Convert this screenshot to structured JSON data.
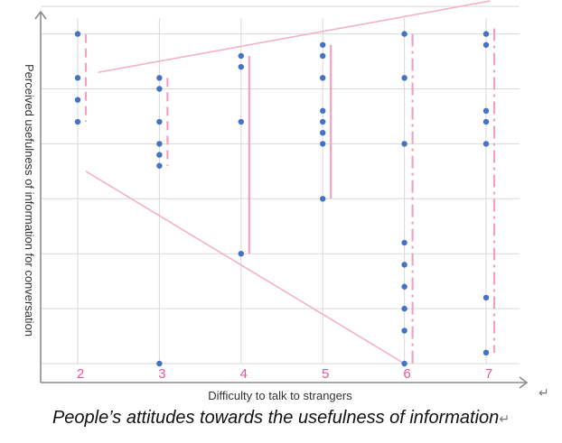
{
  "chart_data": {
    "type": "scatter",
    "xlabel": "Difficulty to talk to strangers",
    "ylabel": "Perceived usefulness of information for conversation",
    "categories": [
      2,
      3,
      4,
      5,
      6,
      7
    ],
    "xlim": [
      1.5,
      7.4
    ],
    "ylim": [
      0,
      7
    ],
    "grid": true,
    "points": [
      {
        "x": 2,
        "y": 6.0
      },
      {
        "x": 2,
        "y": 5.2
      },
      {
        "x": 2,
        "y": 4.8
      },
      {
        "x": 2,
        "y": 4.4
      },
      {
        "x": 3,
        "y": 5.2
      },
      {
        "x": 3,
        "y": 5.0
      },
      {
        "x": 3,
        "y": 4.4
      },
      {
        "x": 3,
        "y": 4.0
      },
      {
        "x": 3,
        "y": 3.8
      },
      {
        "x": 3,
        "y": 3.6
      },
      {
        "x": 3,
        "y": 0.0
      },
      {
        "x": 4,
        "y": 5.6
      },
      {
        "x": 4,
        "y": 5.4
      },
      {
        "x": 4,
        "y": 4.4
      },
      {
        "x": 4,
        "y": 2.0
      },
      {
        "x": 5,
        "y": 5.8
      },
      {
        "x": 5,
        "y": 5.6
      },
      {
        "x": 5,
        "y": 5.2
      },
      {
        "x": 5,
        "y": 4.6
      },
      {
        "x": 5,
        "y": 4.4
      },
      {
        "x": 5,
        "y": 4.2
      },
      {
        "x": 5,
        "y": 4.0
      },
      {
        "x": 5,
        "y": 3.0
      },
      {
        "x": 6,
        "y": 6.0
      },
      {
        "x": 6,
        "y": 5.2
      },
      {
        "x": 6,
        "y": 4.0
      },
      {
        "x": 6,
        "y": 2.2
      },
      {
        "x": 6,
        "y": 1.8
      },
      {
        "x": 6,
        "y": 1.4
      },
      {
        "x": 6,
        "y": 1.0
      },
      {
        "x": 6,
        "y": 0.6
      },
      {
        "x": 6,
        "y": 0.0
      },
      {
        "x": 7,
        "y": 6.0
      },
      {
        "x": 7,
        "y": 5.8
      },
      {
        "x": 7,
        "y": 4.6
      },
      {
        "x": 7,
        "y": 4.4
      },
      {
        "x": 7,
        "y": 4.0
      },
      {
        "x": 7,
        "y": 1.2
      },
      {
        "x": 7,
        "y": 0.2
      }
    ],
    "range_bars": [
      {
        "x": 2,
        "low": 4.4,
        "high": 6.0,
        "dash": "dash"
      },
      {
        "x": 3,
        "low": 3.6,
        "high": 5.2,
        "dash": "dash"
      },
      {
        "x": 4,
        "low": 2.0,
        "high": 5.6,
        "dash": "solid"
      },
      {
        "x": 5,
        "low": 3.0,
        "high": 5.8,
        "dash": "solid"
      },
      {
        "x": 6,
        "low": 0.0,
        "high": 6.0,
        "dash": "dashdot"
      },
      {
        "x": 7,
        "low": 0.2,
        "high": 6.1,
        "dash": "dashdot"
      }
    ],
    "trend_lines": [
      {
        "x1": 2.25,
        "y1": 5.3,
        "x2": 7.05,
        "y2": 6.6
      },
      {
        "x1": 2.1,
        "y1": 3.5,
        "x2": 6.0,
        "y2": 0.0
      }
    ],
    "colors": {
      "points": "#4472c4",
      "ranges": "#f4a0c4",
      "trends": "#f4b0cc",
      "ticks": "#e8559a",
      "grid": "#d9d9d9",
      "axis": "#8c8c8c"
    }
  },
  "caption": "People’s attitudes towards the usefulness of information",
  "return_mark": "↵"
}
